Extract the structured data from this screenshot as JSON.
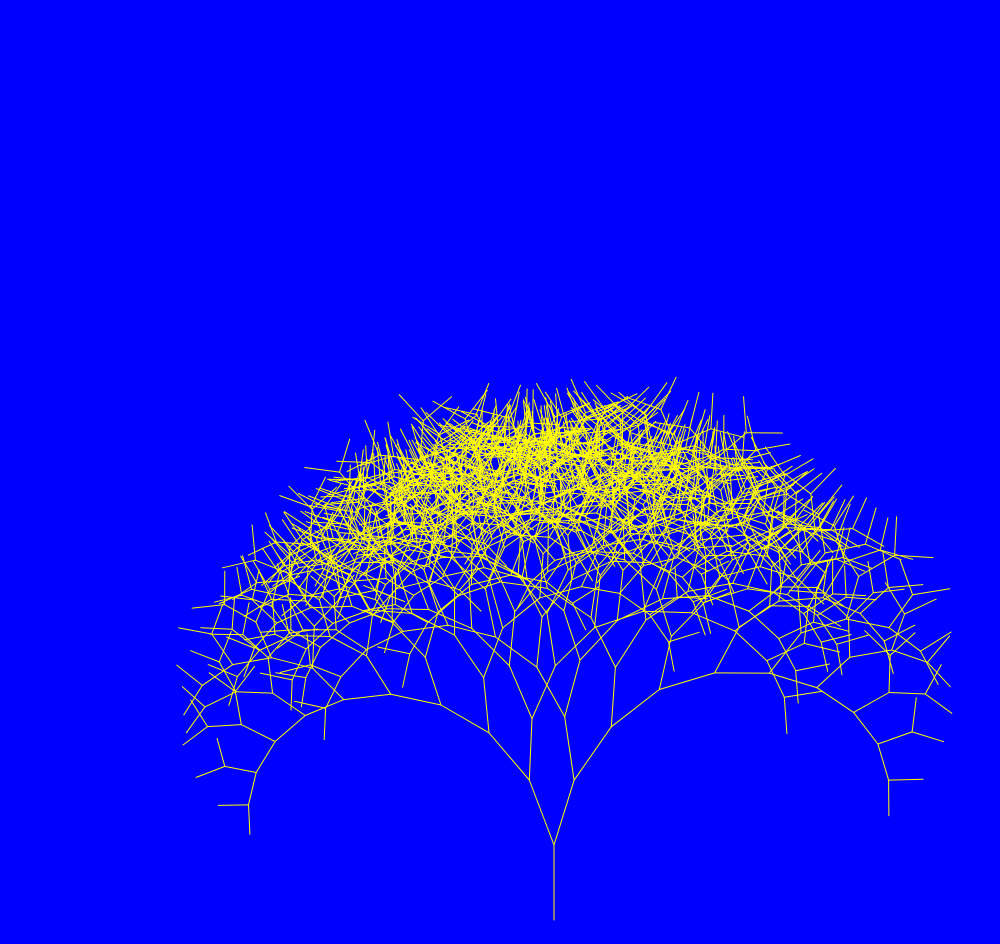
{
  "colors": {
    "background": "#0000FF",
    "branch": "#FFFF00"
  },
  "fractal": {
    "kind": "binary-branching-tree",
    "depth": 10,
    "initial_heading_degrees": 90,
    "branch_angle_degrees": 15,
    "length_ratio": 0.92,
    "heading_jitter": 0.12
  }
}
